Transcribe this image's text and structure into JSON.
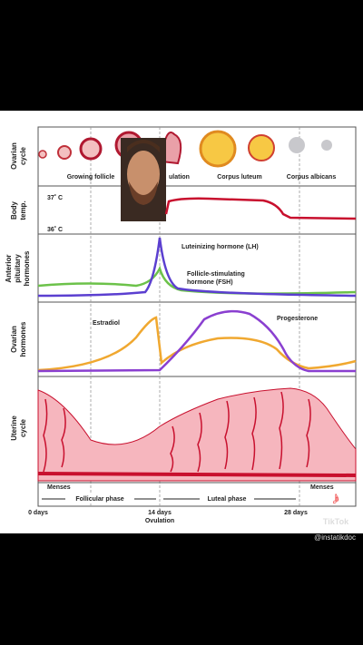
{
  "rows": [
    [
      "Ovarian",
      "cycle"
    ],
    [
      "Body",
      "temp."
    ],
    [
      "Anterior",
      "pituitary",
      "hormones"
    ],
    [
      "Ovarian",
      "hormones"
    ],
    [
      "Uterine",
      "cycle"
    ]
  ],
  "ovarian_labels": [
    "Growing follicle",
    "ulation",
    "Corpus luteum",
    "Corpus albicans"
  ],
  "temperature_labels": [
    "37˚ C",
    "36˚ C"
  ],
  "hormone_labels": {
    "lh": "Luteinizing hormone (LH)",
    "fsh": [
      "Follicle-stimulating",
      "hormone (FSH)"
    ],
    "estradiol": "Estradiol",
    "progesterone": "Progesterone"
  },
  "phases": [
    "Menses",
    "Follicular phase",
    "Luteal phase",
    "Menses"
  ],
  "axis": {
    "start": "0 days",
    "mid": "14 days",
    "ovulation": "Ovulation",
    "end": "28 days"
  },
  "tiktok": {
    "watermark": "TikTok",
    "username": "@instatikdoc"
  }
}
